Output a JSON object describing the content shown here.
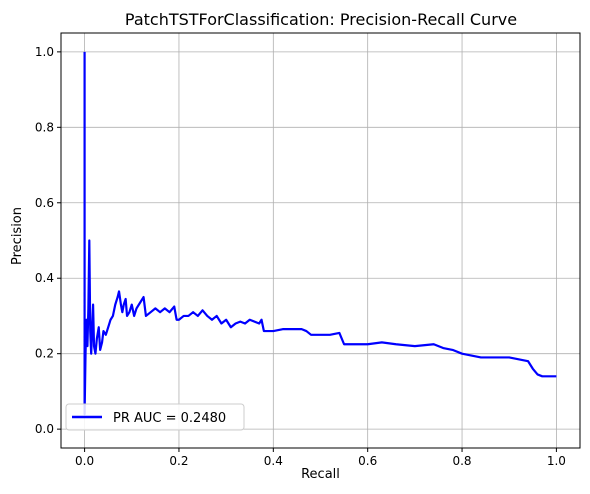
{
  "chart_data": {
    "type": "line",
    "title": "PatchTSTForClassification: Precision-Recall Curve",
    "xlabel": "Recall",
    "ylabel": "Precision",
    "xlim": [
      -0.05,
      1.05
    ],
    "ylim": [
      -0.05,
      1.05
    ],
    "xticks": [
      0.0,
      0.2,
      0.4,
      0.6,
      0.8,
      1.0
    ],
    "xtick_labels": [
      "0.0",
      "0.2",
      "0.4",
      "0.6",
      "0.8",
      "1.0"
    ],
    "yticks": [
      0.0,
      0.2,
      0.4,
      0.6,
      0.8,
      1.0
    ],
    "ytick_labels": [
      "0.0",
      "0.2",
      "0.4",
      "0.6",
      "0.8",
      "1.0"
    ],
    "grid": true,
    "legend_position": "lower-left",
    "series": [
      {
        "name": "PR AUC = 0.2480",
        "color": "#0000ff",
        "points": [
          [
            0.0,
            1.0
          ],
          [
            0.0,
            0.04
          ],
          [
            0.002,
            0.2
          ],
          [
            0.004,
            0.29
          ],
          [
            0.006,
            0.22
          ],
          [
            0.008,
            0.32
          ],
          [
            0.01,
            0.5
          ],
          [
            0.012,
            0.26
          ],
          [
            0.014,
            0.2
          ],
          [
            0.016,
            0.27
          ],
          [
            0.018,
            0.33
          ],
          [
            0.02,
            0.22
          ],
          [
            0.023,
            0.2
          ],
          [
            0.026,
            0.24
          ],
          [
            0.03,
            0.27
          ],
          [
            0.033,
            0.21
          ],
          [
            0.037,
            0.23
          ],
          [
            0.04,
            0.26
          ],
          [
            0.045,
            0.25
          ],
          [
            0.05,
            0.27
          ],
          [
            0.055,
            0.29
          ],
          [
            0.06,
            0.3
          ],
          [
            0.065,
            0.33
          ],
          [
            0.07,
            0.35
          ],
          [
            0.073,
            0.365
          ],
          [
            0.077,
            0.33
          ],
          [
            0.08,
            0.31
          ],
          [
            0.083,
            0.33
          ],
          [
            0.087,
            0.345
          ],
          [
            0.09,
            0.3
          ],
          [
            0.095,
            0.31
          ],
          [
            0.1,
            0.33
          ],
          [
            0.105,
            0.3
          ],
          [
            0.11,
            0.32
          ],
          [
            0.115,
            0.33
          ],
          [
            0.12,
            0.34
          ],
          [
            0.125,
            0.35
          ],
          [
            0.13,
            0.3
          ],
          [
            0.14,
            0.31
          ],
          [
            0.15,
            0.32
          ],
          [
            0.16,
            0.31
          ],
          [
            0.17,
            0.32
          ],
          [
            0.18,
            0.31
          ],
          [
            0.19,
            0.325
          ],
          [
            0.195,
            0.29
          ],
          [
            0.2,
            0.29
          ],
          [
            0.21,
            0.3
          ],
          [
            0.22,
            0.3
          ],
          [
            0.23,
            0.31
          ],
          [
            0.24,
            0.3
          ],
          [
            0.25,
            0.315
          ],
          [
            0.26,
            0.3
          ],
          [
            0.27,
            0.29
          ],
          [
            0.28,
            0.3
          ],
          [
            0.29,
            0.28
          ],
          [
            0.3,
            0.29
          ],
          [
            0.31,
            0.27
          ],
          [
            0.32,
            0.28
          ],
          [
            0.33,
            0.285
          ],
          [
            0.34,
            0.28
          ],
          [
            0.35,
            0.29
          ],
          [
            0.37,
            0.28
          ],
          [
            0.375,
            0.29
          ],
          [
            0.38,
            0.26
          ],
          [
            0.39,
            0.26
          ],
          [
            0.4,
            0.26
          ],
          [
            0.42,
            0.265
          ],
          [
            0.44,
            0.265
          ],
          [
            0.46,
            0.265
          ],
          [
            0.47,
            0.26
          ],
          [
            0.48,
            0.25
          ],
          [
            0.5,
            0.25
          ],
          [
            0.52,
            0.25
          ],
          [
            0.54,
            0.255
          ],
          [
            0.55,
            0.225
          ],
          [
            0.57,
            0.225
          ],
          [
            0.6,
            0.225
          ],
          [
            0.63,
            0.23
          ],
          [
            0.66,
            0.225
          ],
          [
            0.7,
            0.22
          ],
          [
            0.74,
            0.225
          ],
          [
            0.76,
            0.215
          ],
          [
            0.78,
            0.21
          ],
          [
            0.8,
            0.2
          ],
          [
            0.82,
            0.195
          ],
          [
            0.84,
            0.19
          ],
          [
            0.86,
            0.19
          ],
          [
            0.88,
            0.19
          ],
          [
            0.9,
            0.19
          ],
          [
            0.92,
            0.185
          ],
          [
            0.94,
            0.18
          ],
          [
            0.95,
            0.16
          ],
          [
            0.96,
            0.145
          ],
          [
            0.97,
            0.14
          ],
          [
            0.98,
            0.14
          ],
          [
            1.0,
            0.14
          ]
        ]
      }
    ]
  }
}
